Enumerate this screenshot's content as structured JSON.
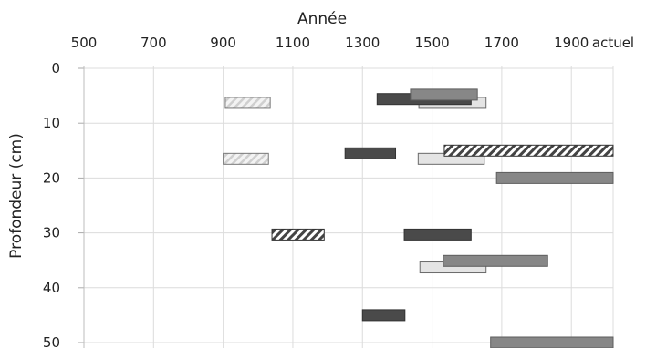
{
  "chart_data": {
    "type": "bar",
    "title": "",
    "xlabel": "Année",
    "ylabel": "Profondeur (cm)",
    "x_axis_position": "top",
    "y_inverted": true,
    "xlim": [
      500,
      2020
    ],
    "ylim": [
      0,
      50
    ],
    "x_ticks": [
      {
        "value": 500,
        "label": "500"
      },
      {
        "value": 700,
        "label": "700"
      },
      {
        "value": 900,
        "label": "900"
      },
      {
        "value": 1100,
        "label": "1100"
      },
      {
        "value": 1300,
        "label": "1300"
      },
      {
        "value": 1500,
        "label": "1500"
      },
      {
        "value": 1700,
        "label": "1700"
      },
      {
        "value": 1900,
        "label": "1900"
      },
      {
        "value": 2020,
        "label": "actuel"
      }
    ],
    "y_ticks": [
      {
        "value": 0,
        "label": "0"
      },
      {
        "value": 10,
        "label": "10"
      },
      {
        "value": 20,
        "label": "20"
      },
      {
        "value": 30,
        "label": "30"
      },
      {
        "value": 40,
        "label": "40"
      },
      {
        "value": 50,
        "label": "50"
      }
    ],
    "grid": true,
    "legend": "none",
    "styles": {
      "dark": {
        "fill": "#4a4a4a",
        "stroke": "#333333"
      },
      "medium": {
        "fill": "#878787",
        "stroke": "#5e5e5e"
      },
      "light": {
        "fill": "#e4e4e4",
        "stroke": "#6a6a6a"
      },
      "hatched": {
        "fill": "hatch",
        "stroke": "#333333",
        "color": "#444444"
      },
      "hatched_light": {
        "fill": "hatch-light",
        "stroke": "#777777",
        "color": "#c8c8c8"
      }
    },
    "bars": [
      {
        "style": "hatched_light",
        "start": 906,
        "end": 1035,
        "depth": 6.3
      },
      {
        "style": "light",
        "start": 1462,
        "end": 1655,
        "depth": 6.3
      },
      {
        "style": "dark",
        "start": 1342,
        "end": 1612,
        "depth": 5.6
      },
      {
        "style": "medium",
        "start": 1438,
        "end": 1630,
        "depth": 4.8
      },
      {
        "style": "hatched_light",
        "start": 900,
        "end": 1030,
        "depth": 16.5
      },
      {
        "style": "dark",
        "start": 1250,
        "end": 1395,
        "depth": 15.5
      },
      {
        "style": "light",
        "start": 1460,
        "end": 1650,
        "depth": 16.5
      },
      {
        "style": "hatched",
        "start": 1535,
        "end": 2020,
        "depth": 15.0
      },
      {
        "style": "medium",
        "start": 1685,
        "end": 2020,
        "depth": 20.0
      },
      {
        "style": "hatched",
        "start": 1040,
        "end": 1190,
        "depth": 30.3
      },
      {
        "style": "dark",
        "start": 1420,
        "end": 1612,
        "depth": 30.3
      },
      {
        "style": "light",
        "start": 1465,
        "end": 1655,
        "depth": 36.3
      },
      {
        "style": "medium",
        "start": 1532,
        "end": 1832,
        "depth": 35.1
      },
      {
        "style": "dark",
        "start": 1300,
        "end": 1422,
        "depth": 45.0
      },
      {
        "style": "medium",
        "start": 1668,
        "end": 2020,
        "depth": 50.0
      }
    ]
  }
}
